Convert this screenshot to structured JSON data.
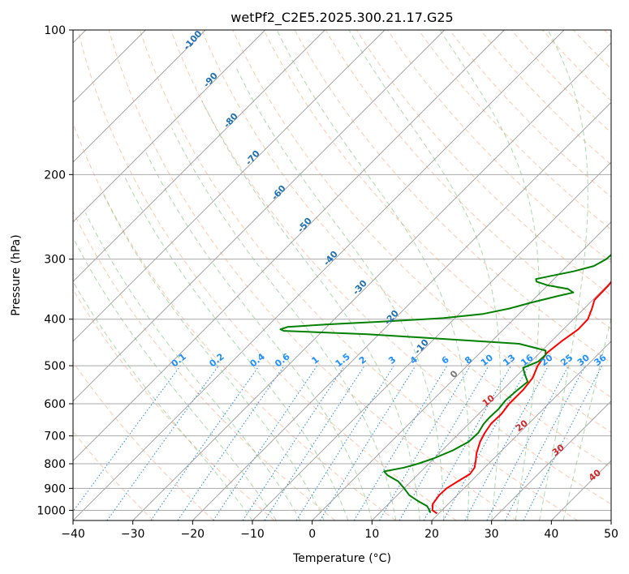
{
  "chart_data": {
    "type": "line",
    "subtype": "skew-t log-p",
    "title": "wetPf2_C2E5.2025.300.21.17.G25",
    "xlabel": "Temperature (°C)",
    "ylabel": "Pressure (hPa)",
    "xlim": [
      -40,
      50
    ],
    "ylim": [
      1050,
      100
    ],
    "y_scale": "log",
    "grid": true,
    "x_ticks": [
      -40,
      -30,
      -20,
      -10,
      0,
      10,
      20,
      30,
      40,
      50
    ],
    "x_tick_labels": [
      "−40",
      "−30",
      "−20",
      "−10",
      "0",
      "10",
      "20",
      "30",
      "40",
      "50"
    ],
    "y_ticks": [
      100,
      200,
      300,
      400,
      500,
      600,
      700,
      800,
      900,
      1000
    ],
    "y_tick_labels": [
      "100",
      "200",
      "300",
      "400",
      "500",
      "600",
      "700",
      "800",
      "900",
      "1000"
    ],
    "mixing_ratio_labels": [
      "0.1",
      "0.2",
      "0.4",
      "0.6",
      "1",
      "1.5",
      "2",
      "3",
      "4",
      "6",
      "8",
      "10",
      "13",
      "16",
      "20",
      "25",
      "30",
      "36"
    ],
    "dry_adiabat_labels": [
      "-100",
      "-90",
      "-80",
      "-70",
      "-60",
      "-50",
      "-40",
      "-30",
      "-20",
      "-10",
      "0"
    ],
    "moist_adiabat_labels": [
      "10",
      "20",
      "30",
      "40"
    ],
    "colors": {
      "temperature": "#ff0000",
      "dewpoint": "#008000",
      "isotherm": "#999999",
      "dry_adiabat": "#ff9966",
      "moist_adiabat": "#66bb66",
      "mixing_ratio": "#1e88e5",
      "label_dry": "#1f6fb4",
      "label_mix": "#1e90ff",
      "label_moist": "#d62728"
    },
    "series": [
      {
        "role": "temperature",
        "points": [
          [
            1015,
            19.7
          ],
          [
            1000,
            18.4
          ],
          [
            970,
            17.4
          ],
          [
            930,
            17.0
          ],
          [
            900,
            17.1
          ],
          [
            870,
            17.8
          ],
          [
            840,
            18.6
          ],
          [
            815,
            18.3
          ],
          [
            790,
            17.4
          ],
          [
            760,
            16.2
          ],
          [
            720,
            14.9
          ],
          [
            690,
            14.2
          ],
          [
            660,
            13.7
          ],
          [
            630,
            13.8
          ],
          [
            600,
            13.4
          ],
          [
            560,
            13.4
          ],
          [
            530,
            13.0
          ],
          [
            500,
            11.8
          ],
          [
            470,
            11.2
          ],
          [
            445,
            11.7
          ],
          [
            420,
            12.5
          ],
          [
            400,
            12.4
          ],
          [
            380,
            11.3
          ],
          [
            365,
            10.3
          ],
          [
            340,
            10.2
          ],
          [
            320,
            9.6
          ],
          [
            300,
            7.1
          ],
          [
            285,
            5.3
          ],
          [
            260,
            3.2
          ],
          [
            230,
            1.2
          ],
          [
            205,
            0.3
          ],
          [
            190,
            0.7
          ],
          [
            175,
            0.8
          ],
          [
            160,
            -0.6
          ],
          [
            150,
            -1.3
          ],
          [
            144,
            -1.0
          ],
          [
            138,
            0.5
          ],
          [
            132,
            2.8
          ],
          [
            126,
            4.6
          ],
          [
            120,
            5.5
          ],
          [
            112,
            6.0
          ],
          [
            105,
            7.3
          ],
          [
            100,
            8.4
          ]
        ]
      },
      {
        "role": "dewpoint",
        "points": [
          [
            1012,
            18.5
          ],
          [
            1000,
            17.9
          ],
          [
            980,
            16.8
          ],
          [
            955,
            14.3
          ],
          [
            930,
            12.0
          ],
          [
            900,
            10.0
          ],
          [
            870,
            7.8
          ],
          [
            845,
            5.0
          ],
          [
            830,
            3.8
          ],
          [
            815,
            6.5
          ],
          [
            800,
            8.2
          ],
          [
            780,
            9.9
          ],
          [
            750,
            11.8
          ],
          [
            720,
            13.0
          ],
          [
            690,
            13.1
          ],
          [
            660,
            12.5
          ],
          [
            640,
            12.4
          ],
          [
            615,
            12.5
          ],
          [
            590,
            12.2
          ],
          [
            560,
            12.5
          ],
          [
            540,
            12.8
          ],
          [
            520,
            11.0
          ],
          [
            505,
            9.7
          ],
          [
            490,
            11.2
          ],
          [
            475,
            11.3
          ],
          [
            465,
            10.6
          ],
          [
            450,
            5.0
          ],
          [
            440,
            -8.0
          ],
          [
            430,
            -22.0
          ],
          [
            423,
            -36.5
          ],
          [
            420,
            -37.3
          ],
          [
            415,
            -36.5
          ],
          [
            410,
            -30.0
          ],
          [
            405,
            -22.0
          ],
          [
            398,
            -12.0
          ],
          [
            390,
            -6.0
          ],
          [
            380,
            -2.5
          ],
          [
            370,
            0.0
          ],
          [
            358,
            3.5
          ],
          [
            352,
            5.5
          ],
          [
            346,
            4.0
          ],
          [
            340,
            0.0
          ],
          [
            334,
            -2.5
          ],
          [
            330,
            -3.0
          ],
          [
            325,
            -1.0
          ],
          [
            318,
            2.0
          ],
          [
            310,
            4.5
          ],
          [
            300,
            5.4
          ],
          [
            290,
            5.6
          ],
          [
            280,
            4.5
          ],
          [
            265,
            2.8
          ],
          [
            250,
            0.5
          ],
          [
            230,
            -1.6
          ],
          [
            215,
            -1.6
          ],
          [
            205,
            -0.7
          ],
          [
            195,
            -1.4
          ],
          [
            185,
            -2.0
          ],
          [
            170,
            -2.4
          ],
          [
            158,
            -2.3
          ],
          [
            150,
            -2.2
          ],
          [
            144,
            -1.6
          ],
          [
            138,
            -0.9
          ],
          [
            132,
            -0.6
          ],
          [
            125,
            -0.8
          ],
          [
            118,
            -0.2
          ],
          [
            110,
            0.6
          ],
          [
            100,
            1.8
          ]
        ]
      }
    ]
  }
}
